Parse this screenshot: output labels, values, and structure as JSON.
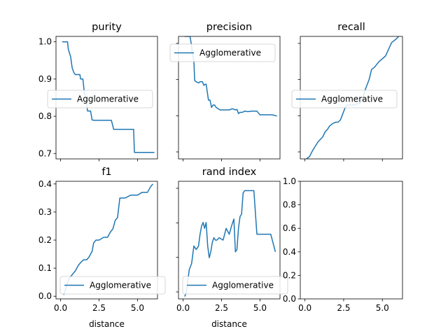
{
  "chart_data": [
    {
      "type": "line",
      "title": "purity",
      "xlabel": "",
      "ylabel": "",
      "xlim": [
        -0.3,
        6.3
      ],
      "ylim": [
        0.6855,
        1.0145
      ],
      "yticks": [
        "0.7",
        "0.8",
        "0.9",
        "1.0"
      ],
      "ytick_values": [
        0.7,
        0.8,
        0.9,
        1.0
      ],
      "xticks": [],
      "xtick_values": [
        0,
        2.5,
        5
      ],
      "legend": "center-left",
      "series": [
        {
          "name": "Agglomerative",
          "color": "#1f77b4",
          "x": [
            0.1,
            0.45,
            0.5,
            0.65,
            0.75,
            0.85,
            0.95,
            1.1,
            1.25,
            1.3,
            1.45,
            1.55,
            1.65,
            1.75,
            1.8,
            1.95,
            2.05,
            2.2,
            2.7,
            3.3,
            3.45,
            3.9,
            4.4,
            4.75,
            4.8,
            5.0,
            6.1
          ],
          "y": [
            1.0,
            1.0,
            0.98,
            0.96,
            0.93,
            0.918,
            0.912,
            0.912,
            0.912,
            0.9,
            0.9,
            0.862,
            0.85,
            0.814,
            0.814,
            0.814,
            0.79,
            0.789,
            0.789,
            0.789,
            0.765,
            0.765,
            0.765,
            0.765,
            0.703,
            0.703,
            0.703
          ]
        }
      ]
    },
    {
      "type": "line",
      "title": "precision",
      "xlabel": "",
      "ylabel": "",
      "xlim": [
        -0.3,
        6.3
      ],
      "ylim": [
        0.5,
        1.0
      ],
      "yticks": [],
      "xticks": [],
      "xtick_values": [
        0,
        2.5,
        5
      ],
      "legend": "top-left",
      "series": [
        {
          "name": "Agglomerative",
          "color": "#1f77b4",
          "x": [
            0.1,
            0.45,
            0.55,
            0.6,
            0.7,
            0.75,
            0.85,
            1.0,
            1.1,
            1.25,
            1.35,
            1.45,
            1.5,
            1.65,
            1.75,
            1.85,
            1.95,
            2.05,
            2.15,
            2.4,
            2.6,
            2.8,
            3.0,
            3.2,
            3.4,
            3.5,
            3.6,
            3.7,
            3.85,
            4.0,
            4.2,
            4.5,
            4.8,
            5.0,
            5.6,
            5.8,
            6.1
          ],
          "y": [
            1.0,
            1.0,
            0.96,
            0.93,
            0.9,
            0.82,
            0.815,
            0.81,
            0.815,
            0.815,
            0.8,
            0.805,
            0.805,
            0.74,
            0.74,
            0.71,
            0.72,
            0.72,
            0.71,
            0.7,
            0.7,
            0.7,
            0.7,
            0.705,
            0.7,
            0.702,
            0.685,
            0.69,
            0.69,
            0.695,
            0.693,
            0.695,
            0.695,
            0.68,
            0.68,
            0.68,
            0.675
          ]
        }
      ]
    },
    {
      "type": "line",
      "title": "recall",
      "xlabel": "",
      "ylabel": "",
      "xlim": [
        -0.3,
        6.3
      ],
      "ylim": [
        0.0,
        1.0
      ],
      "yticks": [],
      "xticks": [],
      "xtick_values": [
        0,
        2.5,
        5
      ],
      "legend": "center-left",
      "series": [
        {
          "name": "Agglomerative",
          "color": "#1f77b4",
          "x": [
            0.1,
            0.3,
            0.5,
            0.65,
            0.85,
            1.0,
            1.15,
            1.3,
            1.45,
            1.6,
            1.8,
            2.0,
            2.15,
            2.3,
            2.45,
            2.6,
            2.75,
            3.2,
            3.35,
            3.5,
            3.75,
            3.85,
            4.0,
            4.15,
            4.3,
            4.5,
            4.75,
            5.2,
            5.6,
            5.9,
            6.05
          ],
          "y": [
            0.0,
            0.02,
            0.07,
            0.1,
            0.14,
            0.16,
            0.18,
            0.22,
            0.24,
            0.27,
            0.29,
            0.3,
            0.3,
            0.32,
            0.37,
            0.42,
            0.44,
            0.44,
            0.45,
            0.45,
            0.49,
            0.55,
            0.6,
            0.65,
            0.73,
            0.75,
            0.79,
            0.84,
            0.95,
            0.98,
            1.0
          ]
        }
      ]
    },
    {
      "type": "line",
      "title": "f1",
      "xlabel": "distance",
      "ylabel": "",
      "xlim": [
        -0.3,
        6.3
      ],
      "ylim": [
        -0.0095,
        0.4095
      ],
      "yticks": [
        "0.0",
        "0.1",
        "0.2",
        "0.3",
        "0.4"
      ],
      "ytick_values": [
        0,
        0.1,
        0.2,
        0.3,
        0.4
      ],
      "xticks": [
        "0.0",
        "2.5",
        "5.0"
      ],
      "xtick_values": [
        0,
        2.5,
        5
      ],
      "legend": "bottom-right",
      "series": [
        {
          "name": "Agglomerative",
          "color": "#1f77b4",
          "x": [
            0.2,
            0.35,
            0.45,
            0.65,
            0.8,
            0.95,
            1.15,
            1.3,
            1.5,
            1.7,
            1.85,
            2.05,
            2.15,
            2.3,
            2.5,
            2.8,
            3.05,
            3.25,
            3.4,
            3.55,
            3.7,
            3.85,
            4.05,
            4.2,
            4.55,
            4.8,
            5.0,
            5.3,
            5.65,
            5.85,
            6.0
          ],
          "y": [
            0.005,
            0.03,
            0.05,
            0.07,
            0.08,
            0.09,
            0.11,
            0.12,
            0.13,
            0.13,
            0.14,
            0.16,
            0.19,
            0.2,
            0.2,
            0.21,
            0.21,
            0.23,
            0.24,
            0.27,
            0.28,
            0.35,
            0.35,
            0.35,
            0.36,
            0.36,
            0.36,
            0.37,
            0.37,
            0.39,
            0.4
          ]
        }
      ]
    },
    {
      "type": "line",
      "title": "rand index",
      "xlabel": "distance",
      "ylabel": "",
      "xlim": [
        -0.3,
        6.3
      ],
      "ylim": [
        0.0,
        1.0
      ],
      "yticks": [],
      "xticks": [
        "0.0",
        "2.5",
        "5.0"
      ],
      "xtick_values": [
        0,
        2.5,
        5
      ],
      "legend": "bottom-right",
      "series": [
        {
          "name": "Agglomerative",
          "color": "#1f77b4",
          "x": [
            0.1,
            0.2,
            0.3,
            0.4,
            0.55,
            0.7,
            0.85,
            1.0,
            1.1,
            1.2,
            1.3,
            1.4,
            1.5,
            1.6,
            1.7,
            1.8,
            1.9,
            2.0,
            2.1,
            2.2,
            2.35,
            2.6,
            2.8,
            3.0,
            3.15,
            3.3,
            3.4,
            3.5,
            3.6,
            3.7,
            3.8,
            3.9,
            4.0,
            4.1,
            4.3,
            4.6,
            4.8,
            5.2,
            5.7,
            5.9,
            6.0
          ],
          "y": [
            0.02,
            0.05,
            0.15,
            0.25,
            0.3,
            0.45,
            0.42,
            0.45,
            0.55,
            0.62,
            0.65,
            0.6,
            0.65,
            0.45,
            0.35,
            0.4,
            0.48,
            0.52,
            0.5,
            0.5,
            0.52,
            0.5,
            0.6,
            0.55,
            0.62,
            0.68,
            0.4,
            0.42,
            0.6,
            0.7,
            0.72,
            0.9,
            0.92,
            0.92,
            0.92,
            0.92,
            0.55,
            0.55,
            0.55,
            0.45,
            0.4
          ]
        }
      ]
    },
    {
      "type": "line",
      "title": "",
      "xlabel": "",
      "ylabel": "",
      "xlim": [
        -0.3,
        6.3
      ],
      "ylim": [
        0.0,
        1.0
      ],
      "yticks": [
        "0.0",
        "0.2",
        "0.4",
        "0.6",
        "0.8",
        "1.0"
      ],
      "ytick_values": [
        0,
        0.2,
        0.4,
        0.6,
        0.8,
        1.0
      ],
      "xticks": [
        "0.0",
        "2.5",
        "5.0"
      ],
      "xtick_values": [
        0,
        2.5,
        5
      ],
      "series": []
    }
  ]
}
